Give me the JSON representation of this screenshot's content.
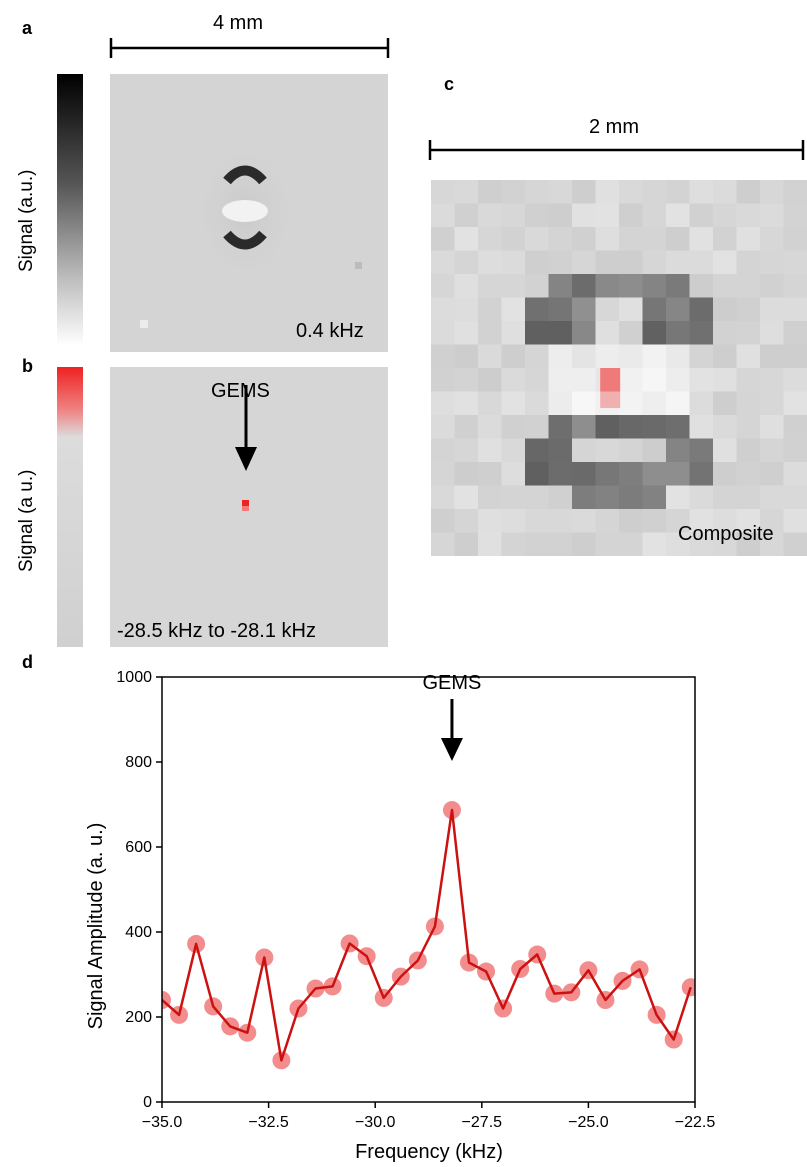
{
  "panel_a": {
    "letter": "a",
    "scale_text": "4 mm",
    "colorbar_label": "Signal (a.u.)",
    "caption": "0.4 kHz"
  },
  "panel_b": {
    "letter": "b",
    "colorbar_label": "Signal (a u.)",
    "annotation": "GEMS",
    "caption": "-28.5 kHz to -28.1 kHz"
  },
  "panel_c": {
    "letter": "c",
    "scale_text": "2 mm",
    "caption": "Composite"
  },
  "panel_d": {
    "letter": "d",
    "annotation": "GEMS"
  },
  "colors": {
    "line": "#cc1111",
    "marker": "#f07070",
    "gems_red": "#ee2222",
    "image_gray": "#d6d6d6"
  },
  "chart_data": {
    "type": "line",
    "xlabel": "Frequency (kHz)",
    "ylabel": "Signal Amplitude (a. u.)",
    "xlim": [
      -35.0,
      -22.5
    ],
    "ylim": [
      0,
      1000
    ],
    "xticks": [
      "−35.0",
      "−32.5",
      "−30.0",
      "−27.5",
      "−25.0",
      "−22.5"
    ],
    "yticks": [
      "0",
      "200",
      "400",
      "600",
      "800",
      "1000"
    ],
    "series": [
      {
        "x": [
          -35.0,
          -34.6,
          -34.2,
          -33.8,
          -33.4,
          -33.0,
          -32.6,
          -32.2,
          -31.8,
          -31.4,
          -31.0,
          -30.6,
          -30.2,
          -29.8,
          -29.4,
          -29.0,
          -28.6,
          -28.2,
          -27.8,
          -27.4,
          -27.0,
          -26.6,
          -26.2,
          -25.8,
          -25.4,
          -25.0,
          -24.6,
          -24.2,
          -23.8,
          -23.4,
          -23.0,
          -22.6
        ],
        "y": [
          240,
          205,
          372,
          225,
          178,
          163,
          340,
          98,
          220,
          267,
          272,
          373,
          343,
          245,
          295,
          333,
          413,
          687,
          328,
          307,
          220,
          313,
          347,
          255,
          258,
          310,
          240,
          285,
          312,
          205,
          147,
          270
        ]
      }
    ],
    "annotation": {
      "text": "GEMS",
      "x": -28.2
    }
  }
}
